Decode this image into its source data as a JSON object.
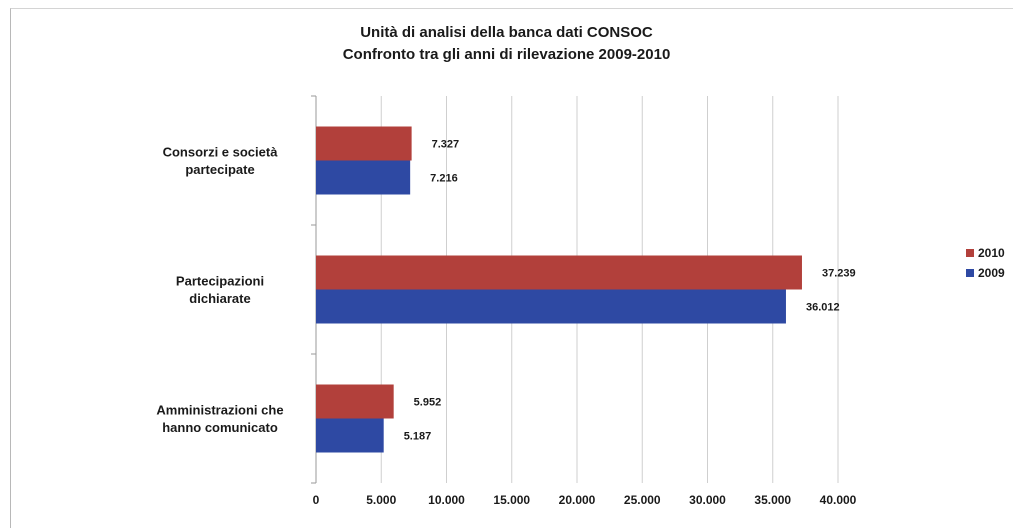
{
  "chart_data": {
    "type": "bar",
    "orientation": "horizontal",
    "title": "Unità di analisi della banca dati CONSOC",
    "subtitle": "Confronto tra gli anni di rilevazione 2009-2010",
    "categories": [
      "Consorzi e società partecipate",
      "Partecipazioni dichiarate",
      "Amministrazioni che hanno comunicato"
    ],
    "category_label_lines": [
      [
        "Consorzi e società",
        "partecipate"
      ],
      [
        "Partecipazioni",
        "dichiarate"
      ],
      [
        "Amministrazioni che",
        "hanno comunicato"
      ]
    ],
    "series": [
      {
        "name": "2010",
        "color": "#b2403b",
        "values": [
          7327,
          37239,
          5952
        ],
        "labels": [
          "7.327",
          "37.239",
          "5.952"
        ]
      },
      {
        "name": "2009",
        "color": "#2e49a3",
        "values": [
          7216,
          36012,
          5187
        ],
        "labels": [
          "7.216",
          "36.012",
          "5.187"
        ]
      }
    ],
    "xlim": [
      0,
      40000
    ],
    "x_ticks": [
      0,
      5000,
      10000,
      15000,
      20000,
      25000,
      30000,
      35000,
      40000
    ],
    "x_tick_labels": [
      "0",
      "5.000",
      "10.000",
      "15.000",
      "20.000",
      "25.000",
      "30.000",
      "35.000",
      "40.000"
    ],
    "grid": true,
    "legend_position": "right"
  },
  "legend": {
    "items": [
      "2010",
      "2009"
    ]
  }
}
